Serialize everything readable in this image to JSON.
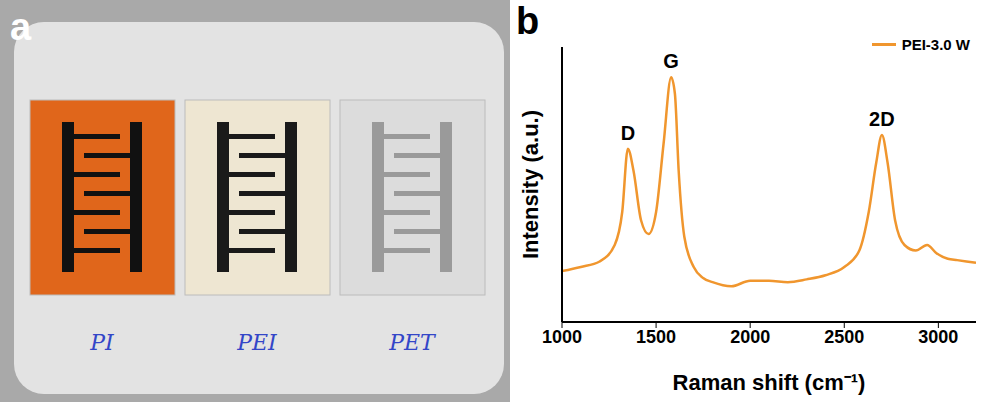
{
  "photo": {
    "panel_label": "a",
    "labels": [
      "PI",
      "PEI",
      "PET"
    ]
  },
  "chart_data": {
    "type": "line",
    "panel_label": "b",
    "x_label": "Raman shift (cm⁻¹)",
    "y_label": "Intensity (a.u.)",
    "xlim": [
      1000,
      3200
    ],
    "xticks": [
      1000,
      1500,
      2000,
      2500,
      3000
    ],
    "ylim": [
      0,
      100
    ],
    "yticks": [],
    "tick_labels": "x",
    "legend": "upper right",
    "annotations": [
      {
        "text": "D",
        "x": 1350
      },
      {
        "text": "G",
        "x": 1580
      },
      {
        "text": "2D",
        "x": 2700
      }
    ],
    "series": [
      {
        "name": "PEI-3.0 W",
        "color": "#f0962e",
        "x": [
          1000,
          1100,
          1200,
          1280,
          1320,
          1350,
          1380,
          1420,
          1460,
          1500,
          1540,
          1580,
          1600,
          1620,
          1650,
          1700,
          1750,
          1800,
          1900,
          2000,
          2100,
          2200,
          2300,
          2400,
          2500,
          2580,
          2630,
          2670,
          2700,
          2730,
          2770,
          2820,
          2880,
          2940,
          2990,
          3050,
          3100,
          3200
        ],
        "values": [
          18.5,
          20,
          22,
          28,
          40,
          63,
          55,
          37,
          32,
          40,
          65,
          89,
          83,
          55,
          31,
          20,
          16,
          14.5,
          13,
          15,
          15,
          14.5,
          15.5,
          17,
          20,
          26,
          40,
          58,
          68,
          58,
          37,
          28,
          26,
          28,
          25,
          23,
          22.5,
          21.5
        ]
      }
    ]
  }
}
